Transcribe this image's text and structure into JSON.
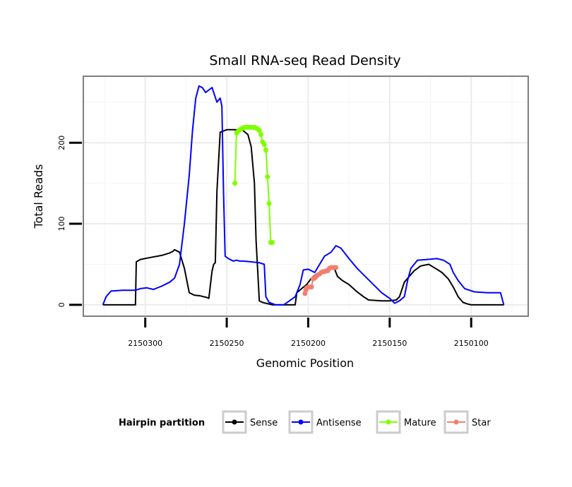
{
  "chart_data": {
    "type": "line",
    "title": "Small RNA-seq Read Density",
    "xlabel": "Genomic Position",
    "ylabel": "Total Reads",
    "x_reversed": true,
    "xlim": [
      2150338,
      2150065
    ],
    "ylim": [
      -14,
      282
    ],
    "x_ticks": [
      2150300,
      2150250,
      2150200,
      2150150,
      2150100
    ],
    "x_tick_labels": [
      "2150300",
      "2150250",
      "2150200",
      "2150150",
      "2150100"
    ],
    "y_ticks": [
      0,
      100,
      200
    ],
    "y_tick_labels": [
      "0",
      "100",
      "200"
    ],
    "x_minor_ticks": [
      2150325,
      2150275,
      2150225,
      2150175,
      2150125,
      2150075
    ],
    "y_minor_ticks": [
      50,
      150,
      250
    ],
    "grid": true,
    "legend": {
      "title": "Hairpin partition",
      "position": "bottom",
      "entries": [
        "Sense",
        "Antisense",
        "Mature",
        "Star"
      ]
    },
    "series": [
      {
        "name": "Sense",
        "color": "#000000",
        "style": "line",
        "x": [
          2150326,
          2150306,
          2150305.5,
          2150303,
          2150298,
          2150290,
          2150285,
          2150283,
          2150282,
          2150279,
          2150276,
          2150273,
          2150270,
          2150266,
          2150262,
          2150261,
          2150259,
          2150258,
          2150257,
          2150256,
          2150254,
          2150250,
          2150245,
          2150240,
          2150237,
          2150235,
          2150233,
          2150232,
          2150230,
          2150228,
          2150222,
          2150208,
          2150207,
          2150204,
          2150201,
          2150198,
          2150195,
          2150190,
          2150186,
          2150184,
          2150182,
          2150179,
          2150175,
          2150170,
          2150166,
          2150163,
          2150155,
          2150150,
          2150146,
          2150144,
          2150141,
          2150138,
          2150135,
          2150131,
          2150126,
          2150122,
          2150118,
          2150114,
          2150111,
          2150108,
          2150105,
          2150102,
          2150100,
          2150094,
          2150080
        ],
        "y": [
          0,
          0,
          53,
          56,
          58,
          61,
          64,
          66,
          68,
          65,
          45,
          15,
          12,
          11,
          9,
          8,
          42,
          50,
          52,
          140,
          213,
          216,
          216,
          215,
          210,
          195,
          150,
          80,
          5,
          3,
          0,
          0,
          15,
          20,
          25,
          33,
          38,
          42,
          44,
          45,
          35,
          30,
          25,
          16,
          10,
          6,
          5,
          5,
          6,
          10,
          28,
          35,
          42,
          48,
          50,
          45,
          40,
          32,
          22,
          10,
          3,
          1,
          0,
          0,
          0
        ]
      },
      {
        "name": "Antisense",
        "color": "#0000ff",
        "style": "line",
        "x": [
          2150326,
          2150324,
          2150321,
          2150314,
          2150306,
          2150303,
          2150299,
          2150295,
          2150290,
          2150285,
          2150282,
          2150279,
          2150276,
          2150273,
          2150271,
          2150269,
          2150267,
          2150265,
          2150263,
          2150261,
          2150259,
          2150256,
          2150254,
          2150253,
          2150252,
          2150251,
          2150249,
          2150247,
          2150246,
          2150244,
          2150242,
          2150240,
          2150235,
          2150230,
          2150227,
          2150226,
          2150224,
          2150220,
          2150215,
          2150208,
          2150205,
          2150203,
          2150200,
          2150196,
          2150193,
          2150190,
          2150186,
          2150183,
          2150180,
          2150175,
          2150170,
          2150165,
          2150160,
          2150155,
          2150150,
          2150147,
          2150144,
          2150141,
          2150139,
          2150137,
          2150133,
          2150127,
          2150121,
          2150117,
          2150113,
          2150111,
          2150108,
          2150104,
          2150098,
          2150090,
          2150082,
          2150080
        ],
        "y": [
          0,
          10,
          17,
          18,
          18,
          20,
          21,
          19,
          23,
          28,
          33,
          50,
          100,
          160,
          215,
          255,
          270,
          268,
          262,
          265,
          268,
          250,
          255,
          245,
          140,
          60,
          57,
          55,
          54,
          55,
          54,
          54,
          53,
          52,
          50,
          10,
          3,
          0,
          0,
          10,
          25,
          43,
          44,
          40,
          50,
          60,
          65,
          73,
          70,
          57,
          45,
          35,
          25,
          15,
          8,
          2,
          5,
          10,
          30,
          45,
          55,
          56,
          57,
          55,
          50,
          40,
          30,
          20,
          16,
          15,
          15,
          0
        ]
      },
      {
        "name": "Mature",
        "color": "#7fff00",
        "style": "points-line",
        "x": [
          2150245,
          2150244,
          2150243,
          2150242,
          2150241,
          2150240,
          2150239,
          2150238,
          2150237,
          2150236,
          2150235,
          2150234,
          2150233,
          2150232,
          2150231,
          2150230,
          2150229,
          2150228,
          2150227,
          2150226,
          2150225,
          2150224,
          2150223,
          2150222
        ],
        "y": [
          150,
          212,
          214,
          216,
          217,
          218,
          219,
          219,
          219,
          219,
          219,
          219,
          219,
          218,
          217,
          215,
          210,
          201,
          198,
          191,
          158,
          125,
          77,
          77
        ]
      },
      {
        "name": "Star",
        "color": "#f08070",
        "style": "points-line",
        "x": [
          2150202,
          2150201.5,
          2150201,
          2150200,
          2150199,
          2150198,
          2150197,
          2150196,
          2150195,
          2150194,
          2150193,
          2150192,
          2150191,
          2150190,
          2150189,
          2150188,
          2150187,
          2150186,
          2150185,
          2150184,
          2150183
        ],
        "y": [
          14,
          18,
          21,
          22,
          22,
          22,
          32,
          33,
          35,
          37,
          38,
          40,
          41,
          41,
          42,
          42,
          45,
          46,
          46,
          46,
          46
        ]
      }
    ]
  }
}
